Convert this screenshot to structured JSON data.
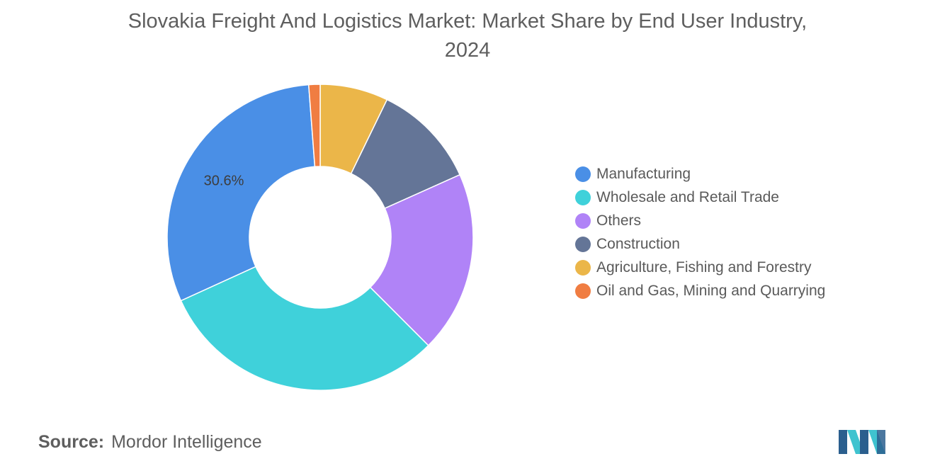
{
  "chart_data": {
    "type": "pie",
    "variant": "donut",
    "title_lines": [
      "Slovakia Freight And Logistics Market: Market Share by End User Industry,",
      "2024"
    ],
    "slices": [
      {
        "name": "Agriculture, Fishing and Forestry",
        "value": 7.2,
        "color": "#ebb649"
      },
      {
        "name": "Construction",
        "value": 11.1,
        "color": "#647597"
      },
      {
        "name": "Others",
        "value": 19.2,
        "color": "#b083f7"
      },
      {
        "name": "Wholesale and Retail Trade",
        "value": 30.7,
        "color": "#3fd1da"
      },
      {
        "name": "Manufacturing",
        "value": 30.6,
        "color": "#4a8fe6",
        "label": "30.6%"
      },
      {
        "name": "Oil and Gas, Mining and Quarrying",
        "value": 1.2,
        "color": "#f07d42"
      }
    ],
    "legend": {
      "placement": "right",
      "items": [
        {
          "label": "Manufacturing",
          "color": "#4a8fe6"
        },
        {
          "label": "Wholesale and Retail Trade",
          "color": "#3fd1da"
        },
        {
          "label": "Others",
          "color": "#b083f7"
        },
        {
          "label": "Construction",
          "color": "#647597"
        },
        {
          "label": "Agriculture, Fishing and Forestry",
          "color": "#ebb649"
        },
        {
          "label": "Oil and Gas, Mining and Quarrying",
          "color": "#f07d42"
        }
      ]
    }
  },
  "source": {
    "key": "Source:",
    "value": "Mordor Intelligence"
  },
  "logo": {
    "icon": "mordor-intelligence-logo-icon",
    "colors": [
      "#2b5f8e",
      "#3fc3cf"
    ]
  }
}
